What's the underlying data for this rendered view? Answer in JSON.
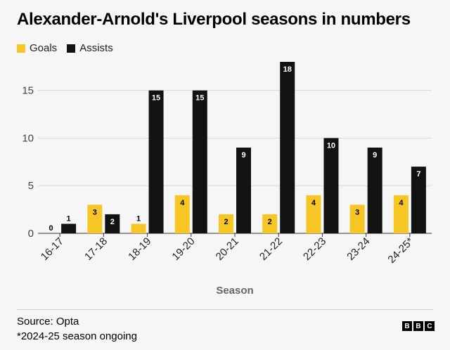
{
  "title": "Alexander-Arnold's Liverpool seasons in numbers",
  "source": "Source: Opta",
  "note": "*2024-25 season ongoing",
  "logo": [
    "B",
    "B",
    "C"
  ],
  "colors": {
    "goals": "#f6c624",
    "assists": "#121212",
    "grid": "#d8d8d8"
  },
  "chart_data": {
    "type": "bar",
    "categories": [
      "16-17",
      "17-18",
      "18-19",
      "19-20",
      "20-21",
      "21-22",
      "22-23",
      "23-24",
      "24-25*"
    ],
    "series": [
      {
        "name": "Goals",
        "values": [
          0,
          3,
          1,
          4,
          2,
          2,
          4,
          3,
          4
        ]
      },
      {
        "name": "Assists",
        "values": [
          1,
          2,
          15,
          15,
          9,
          18,
          10,
          9,
          7
        ]
      }
    ],
    "xlabel": "Season",
    "ylabel": "",
    "ylim": [
      0,
      18
    ],
    "yticks": [
      0,
      5,
      10,
      15
    ],
    "grid": true,
    "legend": "top-left"
  }
}
